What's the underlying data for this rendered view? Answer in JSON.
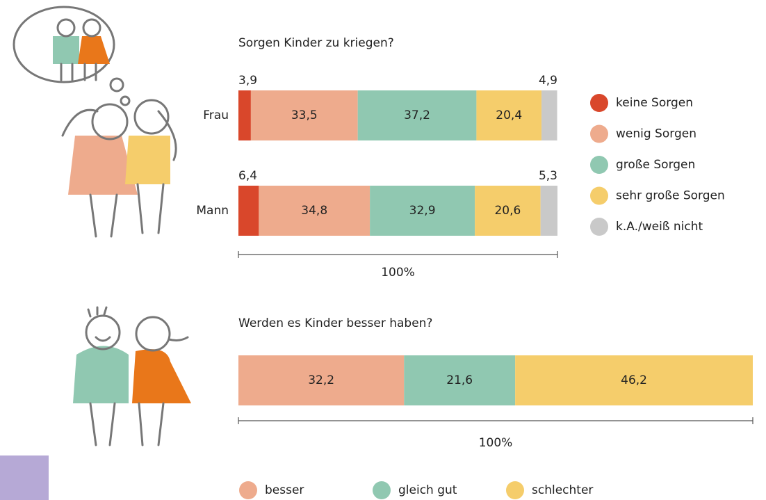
{
  "chart_data": [
    {
      "type": "stacked-bar",
      "title": "Sorgen Kinder zu kriegen?",
      "categories": [
        "Frau",
        "Mann"
      ],
      "xlim": [
        0,
        100
      ],
      "scale_label": "100%",
      "legend": "right",
      "series": [
        {
          "name": "keine Sorgen",
          "color": "#d9472b",
          "values": [
            3.9,
            6.4
          ],
          "value_labels": [
            "3,9",
            "6,4"
          ]
        },
        {
          "name": "wenig Sorgen",
          "color": "#eeab8d",
          "values": [
            33.5,
            34.8
          ],
          "value_labels": [
            "33,5",
            "34,8"
          ]
        },
        {
          "name": "große Sorgen",
          "color": "#90c8b1",
          "values": [
            37.2,
            32.9
          ],
          "value_labels": [
            "37,2",
            "32,9"
          ]
        },
        {
          "name": "sehr große Sorgen",
          "color": "#f5cd6b",
          "values": [
            20.4,
            20.6
          ],
          "value_labels": [
            "20,4",
            "20,6"
          ]
        },
        {
          "name": "k.A./weiß nicht",
          "color": "#c9c9c9",
          "values": [
            4.9,
            5.3
          ],
          "value_labels": [
            "4,9",
            "5,3"
          ]
        }
      ]
    },
    {
      "type": "stacked-bar",
      "title": "Werden es Kinder besser haben?",
      "categories": [
        null
      ],
      "xlim": [
        0,
        100
      ],
      "scale_label": "100%",
      "legend": "bottom",
      "series": [
        {
          "name": "besser",
          "color": "#eeab8d",
          "values": [
            32.2
          ],
          "value_labels": [
            "32,2"
          ]
        },
        {
          "name": "gleich gut",
          "color": "#90c8b1",
          "values": [
            21.6
          ],
          "value_labels": [
            "21,6"
          ]
        },
        {
          "name": "schlechter",
          "color": "#f5cd6b",
          "values": [
            46.2
          ],
          "value_labels": [
            "46,2"
          ]
        }
      ]
    }
  ]
}
